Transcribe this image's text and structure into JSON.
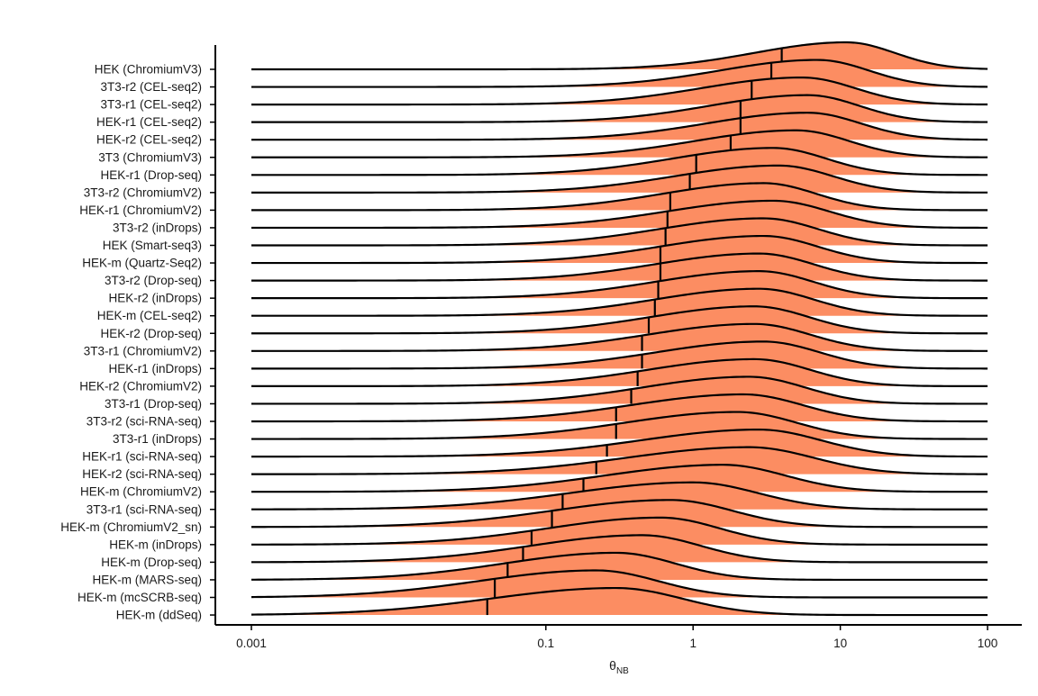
{
  "chart_data": {
    "type": "ridgeline",
    "x_scale": "log10",
    "xlim": [
      0.001,
      100
    ],
    "x_ticks": [
      0.001,
      0.1,
      1,
      10,
      100
    ],
    "x_tick_labels": [
      "0.001",
      "0.1",
      "1",
      "10",
      "100"
    ],
    "xlabel": "θ",
    "xlabel_subscript": "NB",
    "ylabel": "",
    "fill_color": "#FC8D62",
    "line_color": "#000000",
    "median_line": true,
    "series": [
      {
        "name": "HEK (ChromiumV3)",
        "median": 4.0,
        "mode": 11.0,
        "spread": 0.33
      },
      {
        "name": "3T3-r2 (CEL-seq2)",
        "median": 3.4,
        "mode": 7.0,
        "spread": 0.35
      },
      {
        "name": "3T3-r1 (CEL-seq2)",
        "median": 2.5,
        "mode": 5.5,
        "spread": 0.36
      },
      {
        "name": "HEK-r1 (CEL-seq2)",
        "median": 2.1,
        "mode": 6.0,
        "spread": 0.35
      },
      {
        "name": "HEK-r2 (CEL-seq2)",
        "median": 2.1,
        "mode": 6.0,
        "spread": 0.36
      },
      {
        "name": "3T3 (ChromiumV3)",
        "median": 1.8,
        "mode": 5.0,
        "spread": 0.36
      },
      {
        "name": "HEK-r1 (Drop-seq)",
        "median": 1.05,
        "mode": 3.5,
        "spread": 0.36
      },
      {
        "name": "3T3-r2 (ChromiumV2)",
        "median": 0.95,
        "mode": 3.8,
        "spread": 0.37
      },
      {
        "name": "HEK-r1 (ChromiumV2)",
        "median": 0.7,
        "mode": 3.0,
        "spread": 0.36
      },
      {
        "name": "3T3-r2 (inDrops)",
        "median": 0.67,
        "mode": 3.5,
        "spread": 0.38
      },
      {
        "name": "HEK (Smart-seq3)",
        "median": 0.65,
        "mode": 3.0,
        "spread": 0.37
      },
      {
        "name": "HEK-m (Quartz-Seq2)",
        "median": 0.6,
        "mode": 3.0,
        "spread": 0.37
      },
      {
        "name": "3T3-r2 (Drop-seq)",
        "median": 0.6,
        "mode": 2.8,
        "spread": 0.37
      },
      {
        "name": "HEK-r2 (inDrops)",
        "median": 0.58,
        "mode": 2.8,
        "spread": 0.37
      },
      {
        "name": "HEK-m (CEL-seq2)",
        "median": 0.55,
        "mode": 2.8,
        "spread": 0.37
      },
      {
        "name": "HEK-r2 (Drop-seq)",
        "median": 0.5,
        "mode": 2.6,
        "spread": 0.37
      },
      {
        "name": "3T3-r1 (ChromiumV2)",
        "median": 0.45,
        "mode": 2.6,
        "spread": 0.38
      },
      {
        "name": "HEK-r1 (inDrops)",
        "median": 0.45,
        "mode": 3.0,
        "spread": 0.38
      },
      {
        "name": "HEK-r2 (ChromiumV2)",
        "median": 0.42,
        "mode": 2.6,
        "spread": 0.38
      },
      {
        "name": "3T3-r1 (Drop-seq)",
        "median": 0.38,
        "mode": 2.4,
        "spread": 0.38
      },
      {
        "name": "3T3-r2 (sci-RNA-seq)",
        "median": 0.3,
        "mode": 2.2,
        "spread": 0.4
      },
      {
        "name": "3T3-r1 (inDrops)",
        "median": 0.3,
        "mode": 2.0,
        "spread": 0.4
      },
      {
        "name": "HEK-r1 (sci-RNA-seq)",
        "median": 0.26,
        "mode": 2.8,
        "spread": 0.42
      },
      {
        "name": "HEK-r2 (sci-RNA-seq)",
        "median": 0.22,
        "mode": 2.4,
        "spread": 0.44
      },
      {
        "name": "HEK-m (ChromiumV2)",
        "median": 0.18,
        "mode": 1.6,
        "spread": 0.42
      },
      {
        "name": "3T3-r1 (sci-RNA-seq)",
        "median": 0.13,
        "mode": 1.0,
        "spread": 0.44
      },
      {
        "name": "HEK-m (ChromiumV2_sn)",
        "median": 0.11,
        "mode": 0.7,
        "spread": 0.42
      },
      {
        "name": "HEK-m (inDrops)",
        "median": 0.08,
        "mode": 0.6,
        "spread": 0.4
      },
      {
        "name": "HEK-m (Drop-seq)",
        "median": 0.07,
        "mode": 0.45,
        "spread": 0.4
      },
      {
        "name": "HEK-m (MARS-seq)",
        "median": 0.055,
        "mode": 0.3,
        "spread": 0.4
      },
      {
        "name": "HEK-m (mcSCRB-seq)",
        "median": 0.045,
        "mode": 0.22,
        "spread": 0.42
      },
      {
        "name": "HEK-m (ddSeq)",
        "median": 0.04,
        "mode": 0.3,
        "spread": 0.45
      }
    ]
  }
}
